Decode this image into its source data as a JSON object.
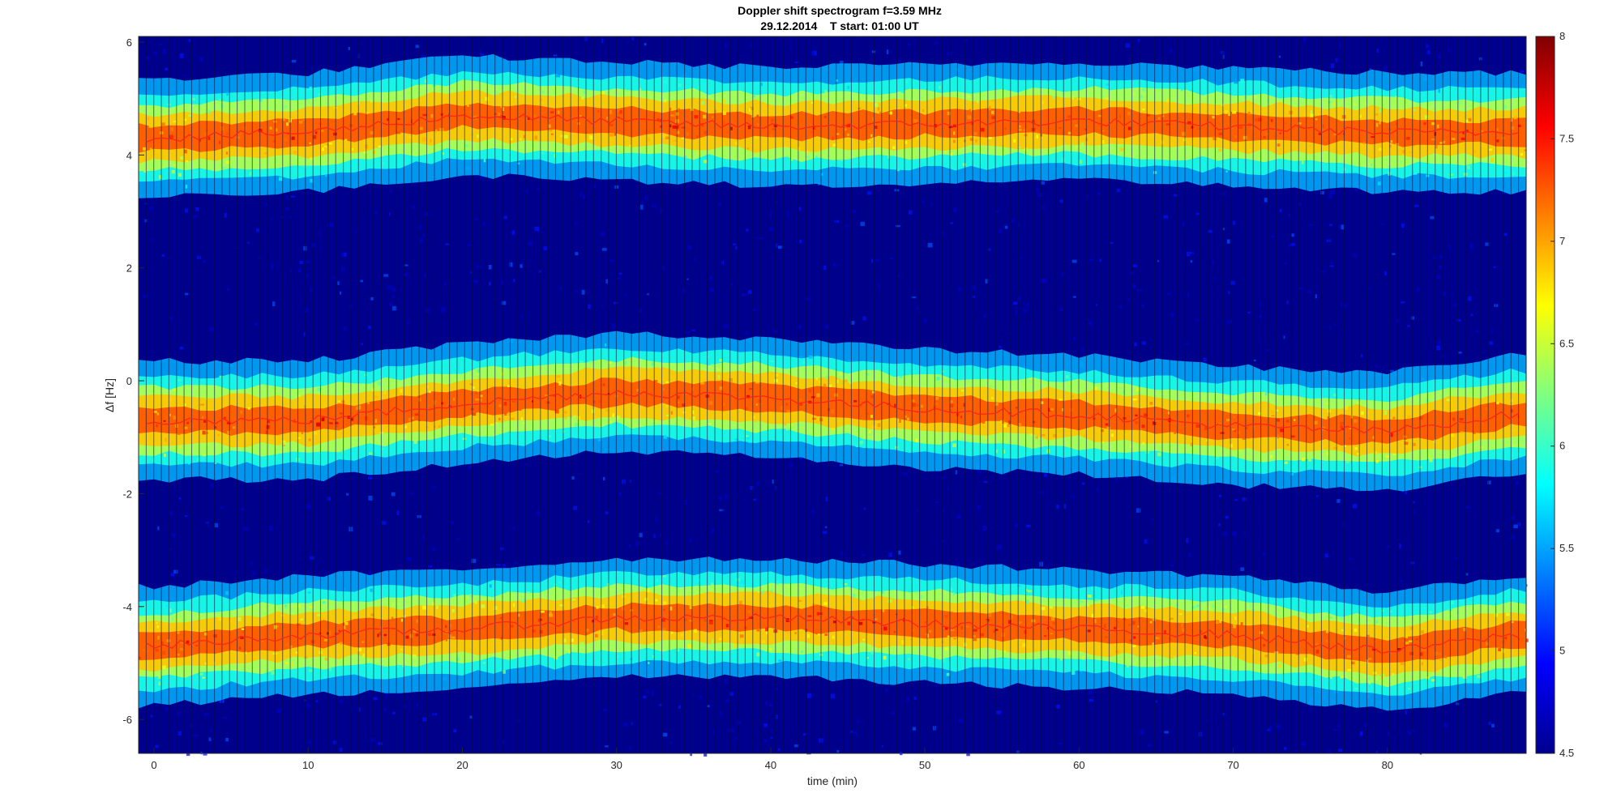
{
  "chart_data": {
    "type": "heatmap",
    "title": "Doppler shift spectrogram f=3.59 MHz",
    "subtitle": "29.12.2014    T start: 01:00 UT",
    "xlabel": "time (min)",
    "ylabel": "Δf [Hz]",
    "xlim": [
      -1,
      89
    ],
    "ylim": [
      -6.6,
      6.1
    ],
    "x_ticks": [
      0,
      10,
      20,
      30,
      40,
      50,
      60,
      70,
      80
    ],
    "y_ticks": [
      -6,
      -4,
      -2,
      0,
      2,
      4,
      6
    ],
    "colorbar": {
      "colormap": "jet",
      "clim": [
        4.5,
        8
      ],
      "ticks": [
        4.5,
        5,
        5.5,
        6,
        6.5,
        7,
        7.5,
        8
      ]
    },
    "grid": false,
    "signal_bands": [
      {
        "name": "",
        "x": [
          0,
          10,
          20,
          30,
          40,
          50,
          60,
          70,
          80,
          88
        ],
        "center": [
          4.3,
          4.4,
          4.7,
          4.6,
          4.5,
          4.55,
          4.6,
          4.5,
          4.4,
          4.4
        ]
      },
      {
        "name": "",
        "x": [
          0,
          10,
          20,
          30,
          40,
          50,
          60,
          70,
          80,
          88
        ],
        "center": [
          -0.7,
          -0.7,
          -0.4,
          -0.2,
          -0.3,
          -0.5,
          -0.6,
          -0.8,
          -0.9,
          -0.6
        ]
      },
      {
        "name": "",
        "x": [
          0,
          10,
          20,
          30,
          40,
          50,
          60,
          70,
          80,
          88
        ],
        "center": [
          -4.7,
          -4.5,
          -4.4,
          -4.2,
          -4.2,
          -4.3,
          -4.4,
          -4.5,
          -4.8,
          -4.5
        ]
      }
    ]
  }
}
